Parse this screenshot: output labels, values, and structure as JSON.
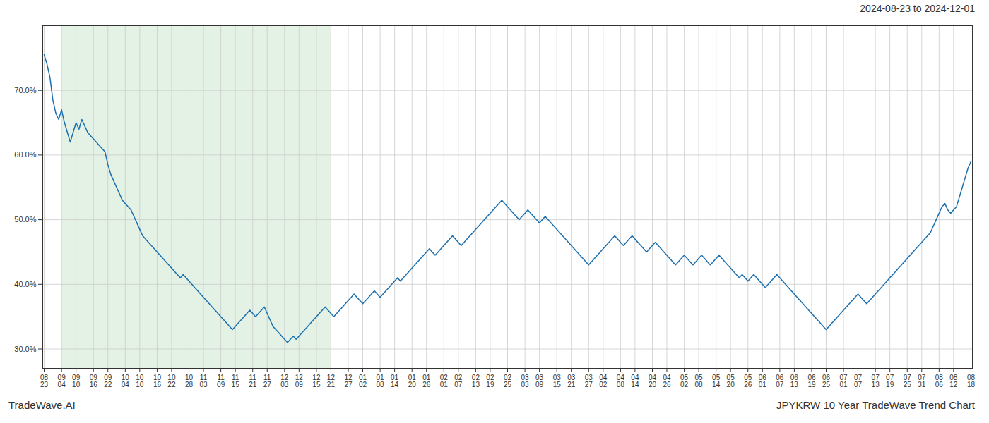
{
  "chart_data": {
    "type": "line",
    "title": "2024-08-23 to 2024-12-01",
    "annotations": [
      "TradeWave.AI",
      "JPYKRW 10 Year TradeWave Trend Chart"
    ],
    "color": "#1a6faf",
    "grid": true,
    "ylim": [
      27,
      80
    ],
    "yticks": [
      {
        "value": 30,
        "label": "30.0%"
      },
      {
        "value": 40,
        "label": "40.0%"
      },
      {
        "value": 50,
        "label": "50.0%"
      },
      {
        "value": 60,
        "label": "60.0%"
      },
      {
        "value": 70,
        "label": "70.0%"
      }
    ],
    "shaded": {
      "from": "09\n04",
      "to": "12\n21",
      "color": "#c8e6c9"
    },
    "categories": [
      "08\n23",
      null,
      null,
      null,
      null,
      null,
      "09\n04",
      null,
      null,
      null,
      null,
      "09\n10",
      null,
      null,
      null,
      null,
      null,
      "09\n16",
      null,
      null,
      null,
      null,
      "09\n22",
      null,
      null,
      null,
      null,
      null,
      "10\n04",
      null,
      null,
      null,
      null,
      "10\n10",
      null,
      null,
      null,
      null,
      null,
      "10\n16",
      null,
      null,
      null,
      null,
      "10\n22",
      null,
      null,
      null,
      null,
      null,
      "10\n28",
      null,
      null,
      null,
      null,
      "11\n03",
      null,
      null,
      null,
      null,
      null,
      "11\n09",
      null,
      null,
      null,
      null,
      "11\n15",
      null,
      null,
      null,
      null,
      null,
      "11\n21",
      null,
      null,
      null,
      null,
      "11\n27",
      null,
      null,
      null,
      null,
      null,
      "12\n03",
      null,
      null,
      null,
      null,
      "12\n09",
      null,
      null,
      null,
      null,
      null,
      "12\n15",
      null,
      null,
      null,
      null,
      "12\n21",
      null,
      null,
      null,
      null,
      null,
      "12\n27",
      null,
      null,
      null,
      null,
      "01\n02",
      null,
      null,
      null,
      null,
      null,
      "01\n08",
      null,
      null,
      null,
      null,
      "01\n14",
      null,
      null,
      null,
      null,
      null,
      "01\n20",
      null,
      null,
      null,
      null,
      "01\n26",
      null,
      null,
      null,
      null,
      null,
      "02\n01",
      null,
      null,
      null,
      null,
      "02\n07",
      null,
      null,
      null,
      null,
      null,
      "02\n13",
      null,
      null,
      null,
      null,
      "02\n19",
      null,
      null,
      null,
      null,
      null,
      "02\n25",
      null,
      null,
      null,
      null,
      null,
      "03\n03",
      null,
      null,
      null,
      null,
      "03\n09",
      null,
      null,
      null,
      null,
      null,
      "03\n15",
      null,
      null,
      null,
      null,
      "03\n21",
      null,
      null,
      null,
      null,
      null,
      "03\n27",
      null,
      null,
      null,
      null,
      "04\n02",
      null,
      null,
      null,
      null,
      null,
      "04\n08",
      null,
      null,
      null,
      null,
      "04\n14",
      null,
      null,
      null,
      null,
      null,
      "04\n20",
      null,
      null,
      null,
      null,
      "04\n26",
      null,
      null,
      null,
      null,
      null,
      "05\n02",
      null,
      null,
      null,
      null,
      "05\n08",
      null,
      null,
      null,
      null,
      null,
      "05\n14",
      null,
      null,
      null,
      null,
      "05\n20",
      null,
      null,
      null,
      null,
      null,
      "05\n26",
      null,
      null,
      null,
      null,
      "06\n01",
      null,
      null,
      null,
      null,
      null,
      "06\n07",
      null,
      null,
      null,
      null,
      "06\n13",
      null,
      null,
      null,
      null,
      null,
      "06\n19",
      null,
      null,
      null,
      null,
      "06\n25",
      null,
      null,
      null,
      null,
      null,
      "07\n01",
      null,
      null,
      null,
      null,
      "07\n07",
      null,
      null,
      null,
      null,
      null,
      "07\n13",
      null,
      null,
      null,
      null,
      "07\n19",
      null,
      null,
      null,
      null,
      null,
      "07\n25",
      null,
      null,
      null,
      null,
      "07\n31",
      null,
      null,
      null,
      null,
      null,
      "08\n06",
      null,
      null,
      null,
      null,
      "08\n12",
      null,
      null,
      null,
      null,
      null,
      "08\n18"
    ],
    "values": [
      75.5,
      74.0,
      72.0,
      68.5,
      66.5,
      65.5,
      67.0,
      65.0,
      63.5,
      62.0,
      63.5,
      65.0,
      64.0,
      65.5,
      64.5,
      63.5,
      63.0,
      62.5,
      62.0,
      61.5,
      61.0,
      60.5,
      58.5,
      57.0,
      56.0,
      55.0,
      54.0,
      53.0,
      52.5,
      52.0,
      51.5,
      50.5,
      49.5,
      48.5,
      47.5,
      47.0,
      46.5,
      46.0,
      45.5,
      45.0,
      44.5,
      44.0,
      43.5,
      43.0,
      42.5,
      42.0,
      41.5,
      41.0,
      41.5,
      41.0,
      40.5,
      40.0,
      39.5,
      39.0,
      38.5,
      38.0,
      37.5,
      37.0,
      36.5,
      36.0,
      35.5,
      35.0,
      34.5,
      34.0,
      33.5,
      33.0,
      33.5,
      34.0,
      34.5,
      35.0,
      35.5,
      36.0,
      35.5,
      35.0,
      35.5,
      36.0,
      36.5,
      35.5,
      34.5,
      33.5,
      33.0,
      32.5,
      32.0,
      31.5,
      31.0,
      31.5,
      32.0,
      31.5,
      32.0,
      32.5,
      33.0,
      33.5,
      34.0,
      34.5,
      35.0,
      35.5,
      36.0,
      36.5,
      36.0,
      35.5,
      35.0,
      35.5,
      36.0,
      36.5,
      37.0,
      37.5,
      38.0,
      38.5,
      38.0,
      37.5,
      37.0,
      37.5,
      38.0,
      38.5,
      39.0,
      38.5,
      38.0,
      38.5,
      39.0,
      39.5,
      40.0,
      40.5,
      41.0,
      40.5,
      41.0,
      41.5,
      42.0,
      42.5,
      43.0,
      43.5,
      44.0,
      44.5,
      45.0,
      45.5,
      45.0,
      44.5,
      45.0,
      45.5,
      46.0,
      46.5,
      47.0,
      47.5,
      47.0,
      46.5,
      46.0,
      46.5,
      47.0,
      47.5,
      48.0,
      48.5,
      49.0,
      49.5,
      50.0,
      50.5,
      51.0,
      51.5,
      52.0,
      52.5,
      53.0,
      52.5,
      52.0,
      51.5,
      51.0,
      50.5,
      50.0,
      50.5,
      51.0,
      51.5,
      51.0,
      50.5,
      50.0,
      49.5,
      50.0,
      50.5,
      50.0,
      49.5,
      49.0,
      48.5,
      48.0,
      47.5,
      47.0,
      46.5,
      46.0,
      45.5,
      45.0,
      44.5,
      44.0,
      43.5,
      43.0,
      43.5,
      44.0,
      44.5,
      45.0,
      45.5,
      46.0,
      46.5,
      47.0,
      47.5,
      47.0,
      46.5,
      46.0,
      46.5,
      47.0,
      47.5,
      47.0,
      46.5,
      46.0,
      45.5,
      45.0,
      45.5,
      46.0,
      46.5,
      46.0,
      45.5,
      45.0,
      44.5,
      44.0,
      43.5,
      43.0,
      43.5,
      44.0,
      44.5,
      44.0,
      43.5,
      43.0,
      43.5,
      44.0,
      44.5,
      44.0,
      43.5,
      43.0,
      43.5,
      44.0,
      44.5,
      44.0,
      43.5,
      43.0,
      42.5,
      42.0,
      41.5,
      41.0,
      41.5,
      41.0,
      40.5,
      41.0,
      41.5,
      41.0,
      40.5,
      40.0,
      39.5,
      40.0,
      40.5,
      41.0,
      41.5,
      41.0,
      40.5,
      40.0,
      39.5,
      39.0,
      38.5,
      38.0,
      37.5,
      37.0,
      36.5,
      36.0,
      35.5,
      35.0,
      34.5,
      34.0,
      33.5,
      33.0,
      33.5,
      34.0,
      34.5,
      35.0,
      35.5,
      36.0,
      36.5,
      37.0,
      37.5,
      38.0,
      38.5,
      38.0,
      37.5,
      37.0,
      37.5,
      38.0,
      38.5,
      39.0,
      39.5,
      40.0,
      40.5,
      41.0,
      41.5,
      42.0,
      42.5,
      43.0,
      43.5,
      44.0,
      44.5,
      45.0,
      45.5,
      46.0,
      46.5,
      47.0,
      47.5,
      48.0,
      49.0,
      50.0,
      51.0,
      52.0,
      52.5,
      51.5,
      51.0,
      51.5,
      52.0,
      53.5,
      55.0,
      56.5,
      58.0,
      59.0
    ]
  }
}
